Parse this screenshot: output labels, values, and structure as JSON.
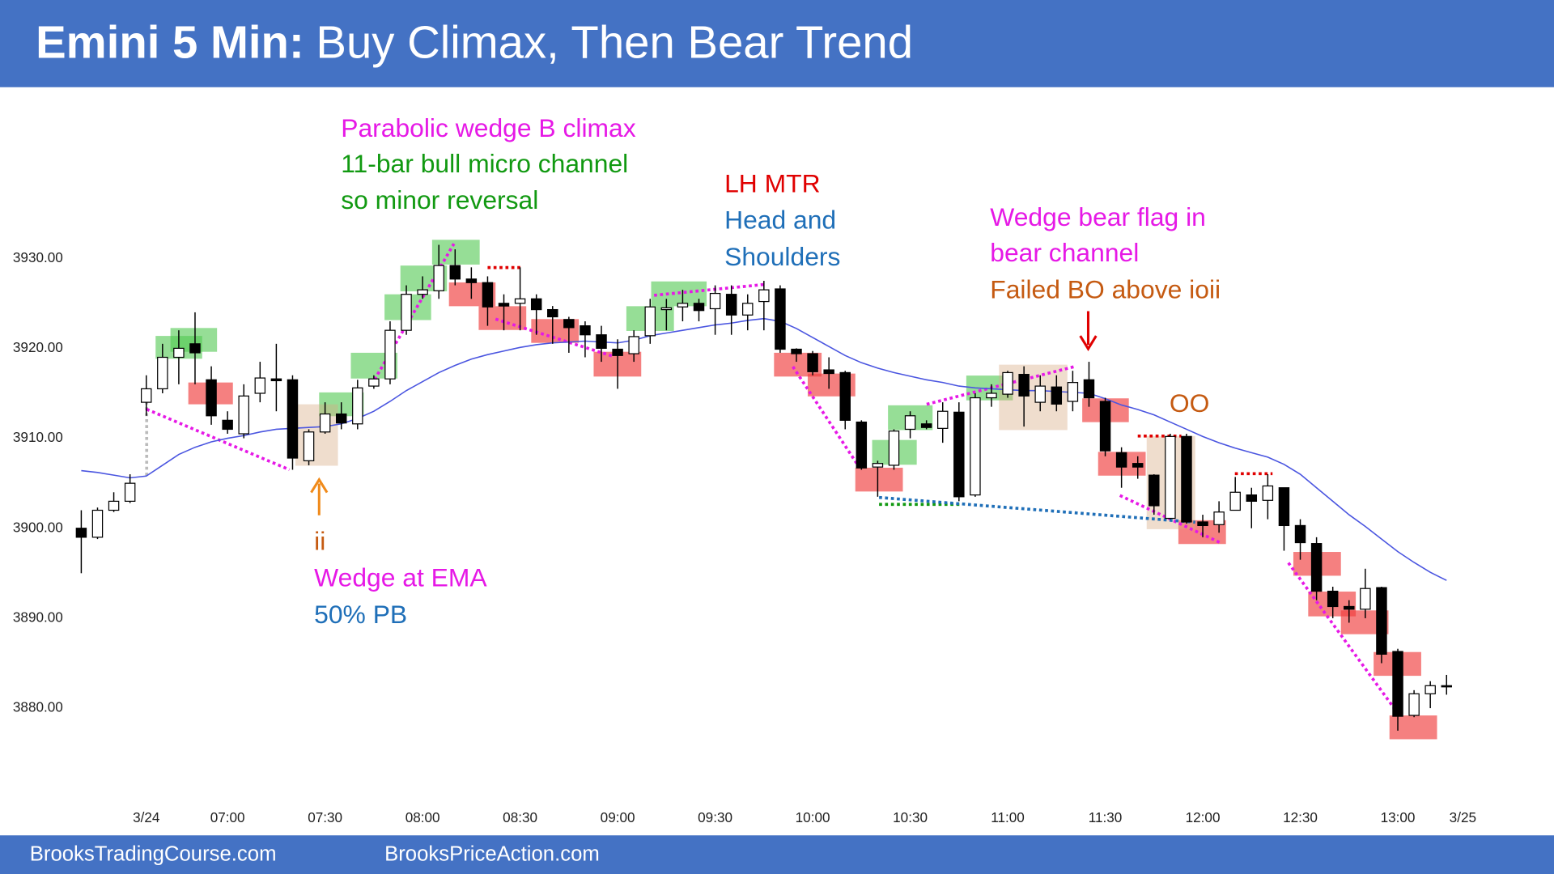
{
  "chart_data": {
    "type": "candlestick",
    "title_prefix": "Emini 5 Min:",
    "title": "Buy Climax, Then Bear Trend",
    "footer_left": "BrooksTradingCourse.com",
    "footer_right": "BrooksPriceAction.com",
    "categories": [
      null,
      null,
      null,
      null,
      "3/24",
      null,
      null,
      null,
      null,
      "07:00",
      null,
      null,
      null,
      null,
      null,
      "07:30",
      null,
      null,
      null,
      null,
      null,
      "08:00",
      null,
      null,
      null,
      null,
      null,
      "08:30",
      null,
      null,
      null,
      null,
      null,
      "09:00",
      null,
      null,
      null,
      null,
      null,
      "09:30",
      null,
      null,
      null,
      null,
      null,
      "10:00",
      null,
      null,
      null,
      null,
      null,
      "10:30",
      null,
      null,
      null,
      null,
      null,
      "11:00",
      null,
      null,
      null,
      null,
      null,
      "11:30",
      null,
      null,
      null,
      null,
      null,
      "12:00",
      null,
      null,
      null,
      null,
      null,
      "12:30",
      null,
      null,
      null,
      null,
      null,
      "13:00",
      null,
      null,
      null,
      "3/25"
    ],
    "open": [
      3900,
      3899,
      3902,
      3903,
      3914,
      3915.5,
      3919,
      3920.5,
      3916.5,
      3912,
      3910.5,
      3915,
      3916.6,
      3916.5,
      3907.5,
      3910.7,
      3912.7,
      3911.6,
      3915.8,
      3916.6,
      3922,
      3926,
      3926.4,
      3929.2,
      3927.7,
      3927.3,
      3925,
      3925,
      3925.5,
      3924.3,
      3923.2,
      3922.5,
      3921.5,
      3919.9,
      3919.4,
      3921.4,
      3924.3,
      3924.6,
      3925,
      3924.4,
      3926,
      3923.7,
      3925.2,
      3926.6,
      3919.9,
      3919.4,
      3917.6,
      3917.3,
      3911.8,
      3906.8,
      3907,
      3911,
      3911.6,
      3911.1,
      3912.9,
      3903.7,
      3914.5,
      3914.9,
      3917.1,
      3914,
      3915.7,
      3914.1,
      3916.5,
      3914.1,
      3908.4,
      3907.2,
      3905.9,
      3901.1,
      3910.2,
      3900.7,
      3900.4,
      3902,
      3903.7,
      3903.1,
      3904.5,
      3900.3,
      3898.3,
      3893,
      3891.3,
      3891,
      3893.4,
      3886.3,
      3879.2,
      3881.6,
      3882.5,
      null
    ],
    "high": [
      3902,
      3902.3,
      3904,
      3906,
      3917,
      3920.5,
      3922,
      3924,
      3918,
      3913,
      3916,
      3918.5,
      3920.5,
      3917,
      3911,
      3914,
      3914,
      3916.5,
      3917,
      3923,
      3927,
      3928,
      3931.5,
      3931,
      3929,
      3928,
      3926,
      3929,
      3926,
      3924.7,
      3923.5,
      3923,
      3922.5,
      3921,
      3922,
      3925.5,
      3925.5,
      3926.5,
      3925.5,
      3927,
      3927,
      3926,
      3927.5,
      3927,
      3920,
      3919.7,
      3919,
      3917.5,
      3912,
      3907.5,
      3911,
      3913,
      3912,
      3914,
      3914,
      3915,
      3916,
      3917.5,
      3918,
      3917,
      3917,
      3917.5,
      3918.5,
      3914.5,
      3909,
      3908,
      3906,
      3910.5,
      3910.5,
      3901.5,
      3903,
      3905.7,
      3904.5,
      3906,
      3904.5,
      3901,
      3899,
      3893.5,
      3892,
      3895.5,
      3893.5,
      3886.6,
      3882,
      3883,
      3883.7,
      null
    ],
    "low": [
      3895,
      3898.8,
      3901.8,
      3902.8,
      3912.5,
      3915,
      3916,
      3916,
      3911.5,
      3910.5,
      3910,
      3914,
      3913,
      3906.5,
      3907,
      3910.5,
      3911,
      3911,
      3915.5,
      3916,
      3921.5,
      3925.5,
      3925.5,
      3927,
      3925.5,
      3922.5,
      3922,
      3922,
      3921.5,
      3920.5,
      3919.5,
      3919,
      3918.5,
      3915.5,
      3918.5,
      3920.5,
      3922,
      3923,
      3923,
      3921.5,
      3921.5,
      3922,
      3922,
      3919.5,
      3918.5,
      3917,
      3915.5,
      3911,
      3906.5,
      3903.5,
      3906.5,
      3910,
      3911,
      3909.5,
      3903,
      3903.5,
      3913.5,
      3914.5,
      3911.3,
      3913,
      3913,
      3913,
      3913.5,
      3908,
      3904.5,
      3905.5,
      3901.5,
      3901,
      3900.5,
      3899,
      3899.5,
      3902,
      3900,
      3901,
      3897.5,
      3896.5,
      3892,
      3890,
      3889.5,
      3890,
      3885,
      3877.5,
      3879,
      3880,
      3881.5,
      null
    ],
    "close": [
      3899,
      3902,
      3903,
      3905,
      3915.5,
      3919,
      3920,
      3919.5,
      3912.5,
      3911,
      3914.7,
      3916.7,
      3916.4,
      3907.8,
      3910.7,
      3912.7,
      3911.7,
      3915.6,
      3916.6,
      3922,
      3926,
      3926.5,
      3929.2,
      3927.7,
      3927.3,
      3924.6,
      3924.7,
      3925.5,
      3924.3,
      3923.5,
      3922.3,
      3921.5,
      3920,
      3919.2,
      3921.3,
      3924.6,
      3924.5,
      3925,
      3924.2,
      3926.1,
      3923.7,
      3925,
      3926.5,
      3919.9,
      3919.4,
      3917.4,
      3917.2,
      3912,
      3906.7,
      3907.2,
      3910.8,
      3912.5,
      3911.2,
      3913,
      3903.5,
      3914.5,
      3915,
      3917.3,
      3914.7,
      3915.8,
      3913.8,
      3916.2,
      3914.5,
      3908.6,
      3906.8,
      3906.8,
      3902.5,
      3910.2,
      3900.7,
      3900.3,
      3901.8,
      3904,
      3903,
      3904.7,
      3900.3,
      3898.4,
      3893,
      3891.3,
      3891,
      3893.3,
      3886,
      3879.1,
      3881.6,
      3882.5,
      3882.4,
      null
    ],
    "up_color": "#ffffff",
    "down_color": "#000000",
    "ema": {
      "color": "#4a55e0",
      "values": [
        3906.4,
        3906.2,
        3905.9,
        3905.6,
        3905.8,
        3907,
        3908.2,
        3909,
        3909.6,
        3910,
        3910.3,
        3910.7,
        3911,
        3911.1,
        3911.2,
        3911.3,
        3911.6,
        3912.2,
        3913,
        3914.1,
        3915.3,
        3916.3,
        3917.3,
        3918.1,
        3918.8,
        3919.3,
        3919.7,
        3920.1,
        3920.4,
        3920.6,
        3920.7,
        3920.8,
        3920.7,
        3920.6,
        3920.9,
        3921.4,
        3921.7,
        3922,
        3922.3,
        3922.6,
        3922.8,
        3923.1,
        3923.3,
        3923,
        3922.2,
        3921.2,
        3920.2,
        3919.2,
        3918.4,
        3917.8,
        3917.3,
        3916.9,
        3916.5,
        3916.2,
        3915.8,
        3915.6,
        3915.5,
        3915.4,
        3915.3,
        3915.3,
        3915.2,
        3915.1,
        3915,
        3914.4,
        3913.7,
        3913.2,
        3912.6,
        3911.8,
        3911,
        3910.2,
        3909.5,
        3908.9,
        3908.4,
        3907.9,
        3907.1,
        3906,
        3904.5,
        3903,
        3901.5,
        3900.2,
        3898.8,
        3897.4,
        3896.2,
        3895.1,
        3894.2,
        null
      ]
    },
    "ylim": [
      3870.6,
      3947.7
    ],
    "yticks": [
      {
        "value": 3880,
        "label": "3880.00"
      },
      {
        "value": 3890,
        "label": "3890.00"
      },
      {
        "value": 3900,
        "label": "3900.00"
      },
      {
        "value": 3910,
        "label": "3910.00"
      },
      {
        "value": 3920,
        "label": "3920.00"
      },
      {
        "value": 3930,
        "label": "3930.00"
      }
    ],
    "annotations": [
      {
        "text": "Parabolic wedge B climax",
        "color": "#e619e6"
      },
      {
        "text": "11-bar bull micro channel",
        "color": "#119911"
      },
      {
        "text": "so minor reversal",
        "color": "#119911"
      },
      {
        "text": "LH MTR",
        "color": "#e00000"
      },
      {
        "text": "Head and",
        "color": "#1f6fb8"
      },
      {
        "text": "Shoulders",
        "color": "#1f6fb8"
      },
      {
        "text": "Wedge bear flag in",
        "color": "#e619e6"
      },
      {
        "text": "bear channel",
        "color": "#e619e6"
      },
      {
        "text": "Failed BO above ioii",
        "color": "#c55a11"
      },
      {
        "text": "OO",
        "color": "#c55a11"
      },
      {
        "text": "ii",
        "color": "#c55a11"
      },
      {
        "text": "Wedge at EMA",
        "color": "#e619e6"
      },
      {
        "text": "50% PB",
        "color": "#1f6fb8"
      }
    ]
  }
}
